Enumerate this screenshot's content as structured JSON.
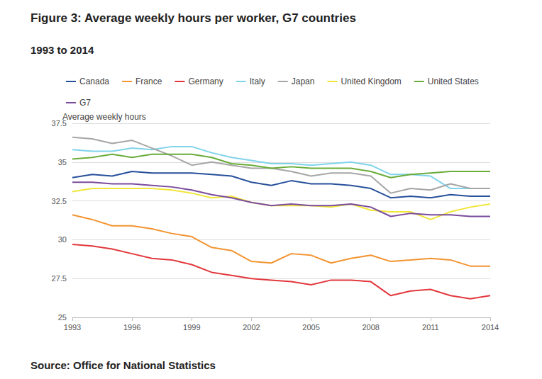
{
  "chart_data": {
    "type": "line",
    "title": "Figure 3: Average weekly hours per worker, G7 countries",
    "subtitle": "1993 to 2014",
    "ylabel": "Average weekly hours",
    "source": "Source: Office for National Statistics",
    "x": [
      1993,
      1994,
      1995,
      1996,
      1997,
      1998,
      1999,
      2000,
      2001,
      2002,
      2003,
      2004,
      2005,
      2006,
      2007,
      2008,
      2009,
      2010,
      2011,
      2012,
      2013,
      2014
    ],
    "xlim": [
      1993,
      2014
    ],
    "xticks": [
      1993,
      1996,
      1999,
      2002,
      2005,
      2008,
      2011,
      2014
    ],
    "ylim": [
      25,
      37.5
    ],
    "yticks": [
      25,
      27.5,
      30,
      32.5,
      35,
      37.5
    ],
    "grid": true,
    "legend": "top-left",
    "series": [
      {
        "name": "Canada",
        "color": "#27509b",
        "values": [
          34.0,
          34.2,
          34.1,
          34.4,
          34.3,
          34.3,
          34.3,
          34.2,
          34.1,
          33.7,
          33.5,
          33.8,
          33.6,
          33.6,
          33.5,
          33.3,
          32.7,
          32.8,
          32.7,
          32.9,
          32.8,
          32.8
        ]
      },
      {
        "name": "France",
        "color": "#f39431",
        "values": [
          31.6,
          31.3,
          30.9,
          30.9,
          30.7,
          30.4,
          30.2,
          29.5,
          29.3,
          28.6,
          28.5,
          29.1,
          29.0,
          28.5,
          28.8,
          29.0,
          28.6,
          28.7,
          28.8,
          28.7,
          28.3,
          28.3
        ]
      },
      {
        "name": "Germany",
        "color": "#e2383d",
        "values": [
          29.7,
          29.6,
          29.4,
          29.1,
          28.8,
          28.7,
          28.4,
          27.9,
          27.7,
          27.5,
          27.4,
          27.3,
          27.1,
          27.4,
          27.4,
          27.3,
          26.4,
          26.7,
          26.8,
          26.4,
          26.2,
          26.4
        ]
      },
      {
        "name": "Italy",
        "color": "#7fd3ea",
        "values": [
          35.8,
          35.7,
          35.7,
          35.9,
          35.8,
          36.0,
          36.0,
          35.6,
          35.3,
          35.1,
          34.9,
          34.9,
          34.8,
          34.9,
          35.0,
          34.8,
          34.2,
          34.2,
          34.1,
          33.3,
          33.3,
          33.3
        ]
      },
      {
        "name": "Japan",
        "color": "#a6a6a6",
        "values": [
          36.6,
          36.5,
          36.2,
          36.4,
          35.9,
          35.4,
          34.8,
          35.0,
          34.8,
          34.6,
          34.6,
          34.4,
          34.1,
          34.3,
          34.3,
          34.1,
          33.0,
          33.3,
          33.2,
          33.6,
          33.3,
          33.3
        ]
      },
      {
        "name": "United Kingdom",
        "color": "#f0e63a",
        "values": [
          33.1,
          33.3,
          33.3,
          33.3,
          33.3,
          33.2,
          33.0,
          32.7,
          32.8,
          32.4,
          32.2,
          32.2,
          32.2,
          32.1,
          32.3,
          31.9,
          31.8,
          31.8,
          31.3,
          31.8,
          32.1,
          32.3
        ]
      },
      {
        "name": "United States",
        "color": "#6aac3a",
        "values": [
          35.2,
          35.3,
          35.5,
          35.3,
          35.5,
          35.5,
          35.5,
          35.3,
          34.9,
          34.8,
          34.6,
          34.7,
          34.6,
          34.6,
          34.6,
          34.4,
          34.0,
          34.2,
          34.3,
          34.4,
          34.4,
          34.4
        ]
      },
      {
        "name": "G7",
        "color": "#7b4c9c",
        "values": [
          33.7,
          33.7,
          33.6,
          33.6,
          33.5,
          33.4,
          33.2,
          32.9,
          32.7,
          32.4,
          32.2,
          32.3,
          32.2,
          32.2,
          32.3,
          32.1,
          31.5,
          31.7,
          31.6,
          31.6,
          31.5,
          31.5
        ]
      }
    ]
  }
}
